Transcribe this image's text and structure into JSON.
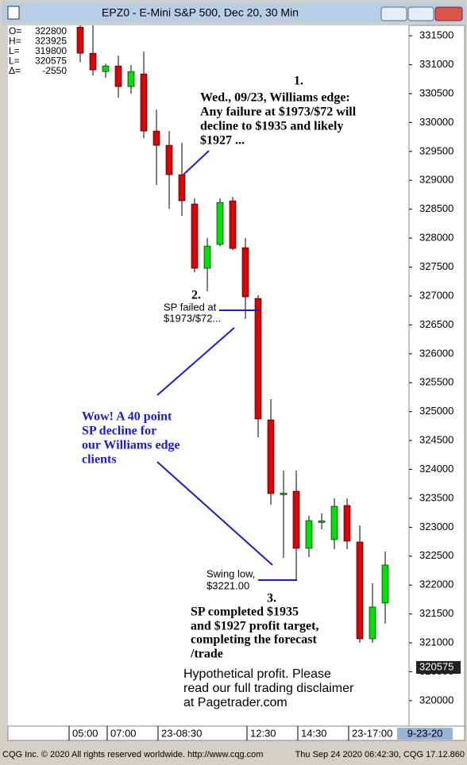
{
  "window_title": "EPZ0 - E-Mini S&P 500, Dec 20, 30 Min",
  "info": [
    {
      "label": "O=",
      "value": 322800
    },
    {
      "label": "H=",
      "value": 323925
    },
    {
      "label": "L=",
      "value": 319800
    },
    {
      "label": "L=",
      "value": 320575
    },
    {
      "label": "Δ=",
      "value": -2550
    }
  ],
  "chart_data": {
    "type": "candlestick",
    "categories": [
      "05:00",
      null,
      null,
      "07:00",
      null,
      null,
      null,
      "23-08:30",
      null,
      null,
      null,
      null,
      null,
      null,
      "12:30",
      null,
      null,
      null,
      "14:30",
      null,
      null,
      null,
      "23-17:00",
      null,
      null
    ],
    "open": [
      331650,
      331198,
      330882,
      330979,
      330622,
      330841,
      329853,
      329606,
      329098,
      328591,
      327479,
      327891,
      328646,
      327836,
      326958,
      324858,
      323575,
      323623,
      322635,
      323095,
      322786,
      323376,
      322745,
      321070,
      321688
    ],
    "high": [
      331680,
      331680,
      331020,
      331157,
      330992,
      331226,
      330224,
      329853,
      329647,
      328687,
      328001,
      328687,
      328714,
      328001,
      327013,
      325215,
      323980,
      323980,
      323197,
      323238,
      323499,
      323499,
      323033,
      322031,
      322580
    ],
    "low": [
      331047,
      330814,
      330773,
      330430,
      330498,
      329730,
      328920,
      328508,
      328385,
      327410,
      327081,
      327863,
      327795,
      326601,
      324556,
      323390,
      322470,
      322086,
      322484,
      322964,
      322621,
      322621,
      321002,
      321002,
      321331
    ],
    "close": [
      331198,
      330910,
      330979,
      330622,
      330882,
      329853,
      329606,
      329098,
      328646,
      327479,
      327863,
      328618,
      327822,
      326985,
      324872,
      323582,
      323590,
      322635,
      323115,
      323110,
      323362,
      322759,
      321070,
      321620,
      322347
    ],
    "up_color": "#00e000",
    "down_color": "#e00000",
    "ylim": [
      319560,
      331680
    ],
    "yticks": [
      320000,
      320500,
      321000,
      321500,
      322000,
      322500,
      323000,
      323500,
      324000,
      324500,
      325000,
      325500,
      326000,
      326500,
      327000,
      327500,
      328000,
      328500,
      329000,
      329500,
      330000,
      330500,
      331000,
      331500
    ],
    "last_price": 320575,
    "date_label": "9-23-20"
  },
  "annotations": [
    {
      "number": "1.",
      "lines": [
        "Wed., 09/23, Williams edge:",
        "Any failure at $1973/$72 will",
        "decline to $1935 and likely",
        "$1927 ..."
      ]
    },
    {
      "number": "2.",
      "lines": [
        "SP failed at",
        "$1973/$72..."
      ]
    },
    {
      "lines": [
        "Wow! A 40 point",
        "SP decline for",
        "our Williams edge",
        "clients"
      ]
    },
    {
      "lines": [
        "Swing low,",
        "$3221.00"
      ]
    },
    {
      "number": "3.",
      "lines": [
        "SP completed $1935",
        "and $1927 profit target,",
        "completing the forecast",
        "/trade"
      ]
    },
    {
      "lines": [
        "Hypothetical profit. Please",
        "read our full trading disclaimer",
        "at Pagetrader.com"
      ]
    }
  ],
  "status_left": "CQG Inc. © 2020 All rights reserved worldwide. http://www.cqg.com",
  "status_right": "Thu Sep 24 2020 06:42:30, CQG 17.12.860"
}
